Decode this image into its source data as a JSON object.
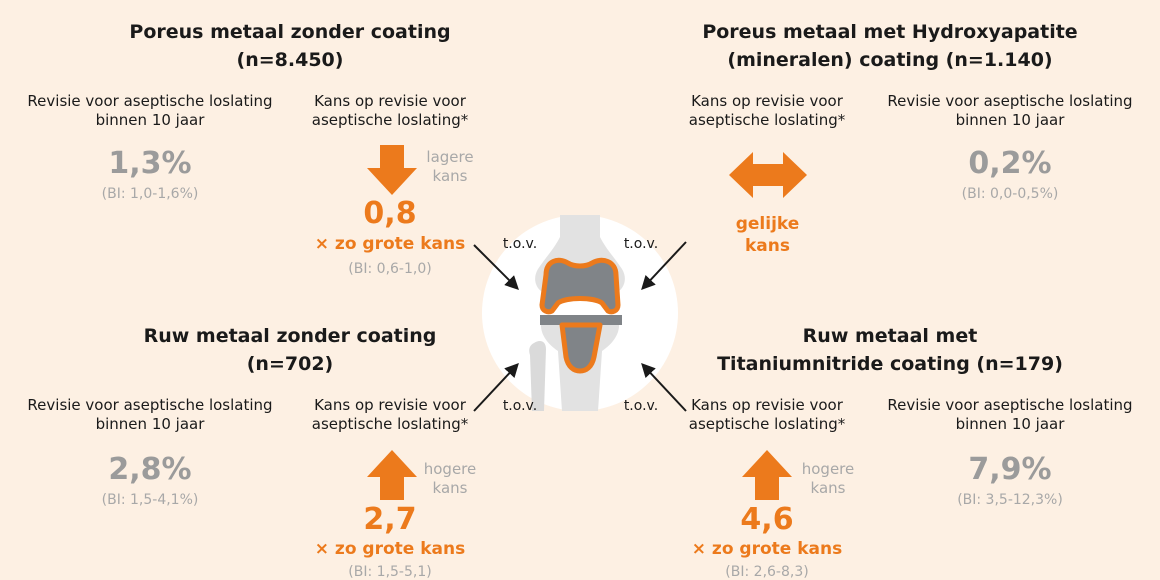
{
  "colors": {
    "accent": "#ec7a1c",
    "grey_value": "#9b9b9b",
    "grey_light": "#a8a8a8",
    "background": "#fdf0e3"
  },
  "quadrants": {
    "top_left": {
      "title_line1": "Poreus metaal zonder coating",
      "title_line2": "(n=8.450)",
      "revision_label_line1": "Revisie voor aseptische loslating",
      "revision_label_line2": "binnen 10 jaar",
      "revision_value": "1,3%",
      "revision_ci": "(BI: 1,0-1,6%)",
      "chance_label_line1": "Kans op revisie voor",
      "chance_label_line2": "aseptische loslating*",
      "direction_line1": "lagere",
      "direction_line2": "kans",
      "arrow": "down-arrow",
      "ratio": "0,8",
      "ratio_label": "× zo grote kans",
      "ratio_ci": "(BI: 0,6-1,0)"
    },
    "top_right": {
      "title_line1": "Poreus metaal met Hydroxyapatite",
      "title_line2": "(mineralen) coating (n=1.140)",
      "chance_label_line1": "Kans op revisie voor",
      "chance_label_line2": "aseptische loslating*",
      "arrow": "double-arrow",
      "equal_line1": "gelijke",
      "equal_line2": "kans",
      "revision_label_line1": "Revisie voor aseptische loslating",
      "revision_label_line2": "binnen 10 jaar",
      "revision_value": "0,2%",
      "revision_ci": "(BI: 0,0-0,5%)"
    },
    "bottom_left": {
      "title_line1": "Ruw metaal zonder coating",
      "title_line2": "(n=702)",
      "revision_label_line1": "Revisie voor aseptische loslating",
      "revision_label_line2": "binnen 10 jaar",
      "revision_value": "2,8%",
      "revision_ci": "(BI: 1,5-4,1%)",
      "chance_label_line1": "Kans op revisie voor",
      "chance_label_line2": "aseptische loslating*",
      "direction_line1": "hogere",
      "direction_line2": "kans",
      "arrow": "up-arrow",
      "ratio": "2,7",
      "ratio_label": "× zo grote kans",
      "ratio_ci": "(BI: 1,5-5,1)"
    },
    "bottom_right": {
      "title_line1": "Ruw metaal met",
      "title_line2": "Titaniumnitride coating (n=179)",
      "chance_label_line1": "Kans op revisie voor",
      "chance_label_line2": "aseptische loslating*",
      "direction_line1": "hogere",
      "direction_line2": "kans",
      "arrow": "up-arrow",
      "ratio": "4,6",
      "ratio_label": "× zo grote kans",
      "ratio_ci": "(BI: 2,6-8,3)",
      "revision_label_line1": "Revisie voor aseptische loslating",
      "revision_label_line2": "binnen 10 jaar",
      "revision_value": "7,9%",
      "revision_ci": "(BI: 3,5-12,3%)"
    }
  },
  "center": {
    "tov_top_left": "t.o.v.",
    "tov_top_right": "t.o.v.",
    "tov_bottom_left": "t.o.v.",
    "tov_bottom_right": "t.o.v.",
    "icon": "knee-prosthesis-icon"
  }
}
